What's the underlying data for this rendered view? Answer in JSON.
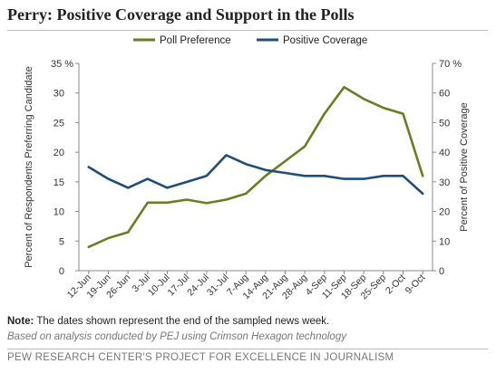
{
  "header": {
    "title": "Perry: Positive Coverage and Support in the Polls"
  },
  "chart_data": {
    "type": "line",
    "categories": [
      "12-Jun",
      "19-Jun",
      "26-Jun",
      "3-Jul",
      "10-Jul",
      "17-Jul",
      "24-Jul",
      "31-Jul",
      "7-Aug",
      "14-Aug",
      "21-Aug",
      "28-Aug",
      "4-Sep",
      "11-Sep",
      "18-Sep",
      "25-Sep",
      "2-Oct",
      "9-Oct"
    ],
    "series": [
      {
        "name": "Poll Preference",
        "axis": "left",
        "color": "#6e7b22",
        "values": [
          4,
          5.5,
          6.5,
          11.5,
          11.5,
          12,
          11.4,
          12,
          13,
          16,
          18.5,
          21,
          26.5,
          31,
          29,
          27.5,
          26.5,
          16
        ]
      },
      {
        "name": "Positive Coverage",
        "axis": "right",
        "color": "#1f4e79",
        "values": [
          35,
          31,
          28,
          31,
          28,
          30,
          32,
          39,
          36,
          34,
          33,
          32,
          32,
          31,
          31,
          32,
          32,
          26
        ]
      }
    ],
    "yleft": {
      "label": "Percent of Respondents Preferring Candidate",
      "ticks": [
        "0",
        "5",
        "10",
        "15",
        "20",
        "25",
        "30",
        "35 %"
      ],
      "ylim": [
        0,
        35
      ]
    },
    "yright": {
      "label": "Percent of Positive Coverage",
      "ticks": [
        "0",
        "10",
        "20",
        "30",
        "40",
        "50",
        "60",
        "70 %"
      ],
      "ylim": [
        0,
        70
      ]
    },
    "legend_position": "top",
    "grid": false
  },
  "notes": {
    "note_label": "Note:",
    "note_text": " The dates shown represent the end of the sampled news week.",
    "source": "Based on analysis conducted by PEJ using Crimson Hexagon technology"
  },
  "footer": {
    "credit": "PEW RESEARCH CENTER'S PROJECT FOR EXCELLENCE IN JOURNALISM"
  }
}
